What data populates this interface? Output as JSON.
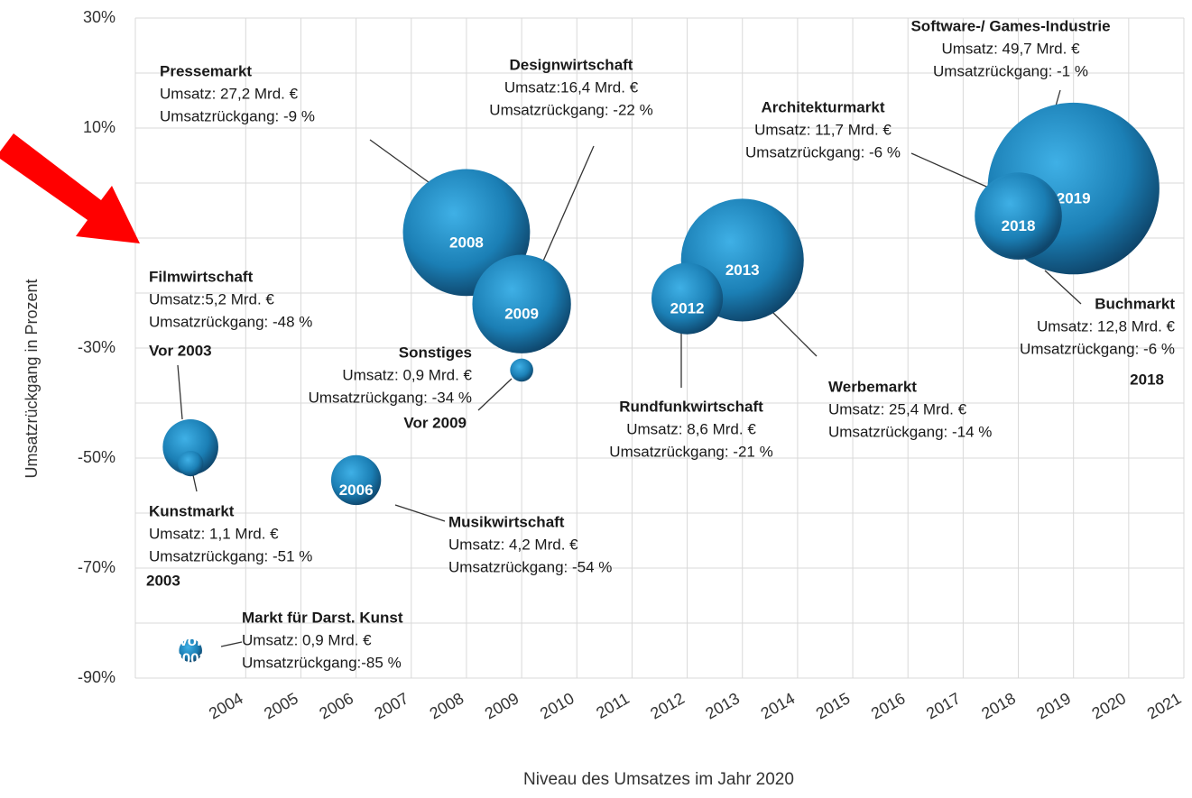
{
  "chart_data": {
    "type": "bubble",
    "y_label": "Umsatzrückgang in Prozent",
    "x_label": "Niveau des Umsatzes im Jahr 2020",
    "xlim": [
      2002,
      2021
    ],
    "xticks": [
      2004,
      2005,
      2006,
      2007,
      2008,
      2009,
      2010,
      2011,
      2012,
      2013,
      2014,
      2015,
      2016,
      2017,
      2018,
      2019,
      2020,
      2021
    ],
    "ylim": [
      -90,
      30
    ],
    "yticks": [
      {
        "value": 30,
        "label": "30%"
      },
      {
        "value": 10,
        "label": "10%"
      },
      {
        "value": -30,
        "label": "-30%"
      },
      {
        "value": -50,
        "label": "-50%"
      },
      {
        "value": -70,
        "label": "-70%"
      },
      {
        "value": -90,
        "label": "-90%"
      }
    ],
    "grid_yticks": [
      20,
      0,
      -10,
      -20,
      -40,
      -60,
      -80
    ],
    "grid": true,
    "color": "#1b7fb5",
    "points": [
      {
        "name": "Software-/ Games-Industrie",
        "x": 2019,
        "y": -1,
        "size": 49.7,
        "bubble_label": "2019",
        "size_label": "Umsatz: 49,7 Mrd. €",
        "y_label": "Umsatzrückgang:  -1 %"
      },
      {
        "name": "Pressemarkt",
        "x": 2008,
        "y": -9,
        "size": 27.2,
        "bubble_label": "2008",
        "size_label": "Umsatz: 27,2 Mrd. €",
        "y_label": "Umsatzrückgang:  -9 %"
      },
      {
        "name": "Werbemarkt",
        "x": 2013,
        "y": -14,
        "size": 25.4,
        "bubble_label": "2013",
        "size_label": "Umsatz: 25,4 Mrd. €",
        "y_label": "Umsatzrückgang:  -14 %"
      },
      {
        "name": "Designwirtschaft",
        "x": 2009,
        "y": -22,
        "size": 16.4,
        "bubble_label": "2009",
        "size_label": "Umsatz:16,4 Mrd. €",
        "y_label": "Umsatzrückgang:  -22 %"
      },
      {
        "name": "Buchmarkt",
        "x": 2018,
        "y": -6,
        "size": 12.8,
        "size_label": "Umsatz:  12,8 Mrd. €",
        "y_label": "Umsatzrückgang:  -6 %",
        "year_note": "2018"
      },
      {
        "name": "Architekturmarkt",
        "x": 2018,
        "y": -6,
        "size": 11.7,
        "bubble_label": "2018",
        "size_label": "Umsatz:  11,7 Mrd. €",
        "y_label": "Umsatzrückgang:  -6 %"
      },
      {
        "name": "Rundfunkwirtschaft",
        "x": 2012,
        "y": -21,
        "size": 8.6,
        "bubble_label": "2012",
        "size_label": "Umsatz:  8,6 Mrd. €",
        "y_label": "Umsatzrückgang:  -21 %"
      },
      {
        "name": "Filmwirtschaft",
        "x": 2003,
        "y": -48,
        "size": 5.2,
        "size_label": "Umsatz:5,2 Mrd. €",
        "y_label": "Umsatzrückgang:  -48 %",
        "year_note": "Vor 2003"
      },
      {
        "name": "Musikwirtschaft",
        "x": 2006,
        "y": -54,
        "size": 4.2,
        "bubble_label": "2006",
        "size_label": "Umsatz:  4,2 Mrd. €",
        "y_label": "Umsatzrückgang:  -54 %"
      },
      {
        "name": "Kunstmarkt",
        "x": 2003,
        "y": -51,
        "size": 1.1,
        "size_label": "Umsatz:  1,1 Mrd. €",
        "y_label": "Umsatzrückgang:  -51 %",
        "year_note": "2003"
      },
      {
        "name": "Sonstiges",
        "x": 2009,
        "y": -34,
        "size": 0.9,
        "size_label": "Umsatz:  0,9 Mrd. €",
        "y_label": "Umsatzrückgang:  -34 %",
        "year_note": "Vor 2009"
      },
      {
        "name": "Markt für Darst. Kunst",
        "x": 2003,
        "y": -85,
        "size": 0.9,
        "bubble_label": [
          "Vor",
          "2003"
        ],
        "size_label": "Umsatz:  0,9 Mrd. €",
        "y_label": "Umsatzrückgang:-85  %"
      }
    ]
  }
}
